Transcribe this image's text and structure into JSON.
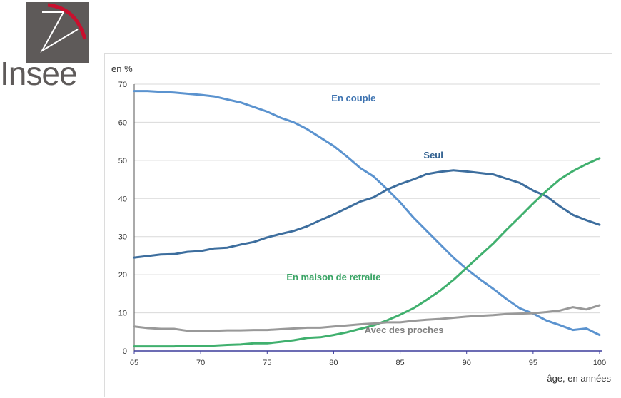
{
  "logo": {
    "text": "Insee"
  },
  "chart_data": {
    "type": "line",
    "ylabel": "en %",
    "xlabel": "âge, en années",
    "xlim": [
      65,
      100
    ],
    "ylim": [
      0,
      70
    ],
    "x_ticks": [
      65,
      70,
      75,
      80,
      85,
      90,
      95,
      100
    ],
    "y_ticks": [
      0,
      10,
      20,
      30,
      40,
      50,
      60,
      70
    ],
    "grid": "horizontal",
    "x": [
      65,
      66,
      67,
      68,
      69,
      70,
      71,
      72,
      73,
      74,
      75,
      76,
      77,
      78,
      79,
      80,
      81,
      82,
      83,
      84,
      85,
      86,
      87,
      88,
      89,
      90,
      91,
      92,
      93,
      94,
      95,
      96,
      97,
      98,
      99,
      100
    ],
    "series": [
      {
        "name": "En couple",
        "color": "#5b93cf",
        "values": [
          68.2,
          68.2,
          68.0,
          67.8,
          67.5,
          67.2,
          66.8,
          66.0,
          65.2,
          64.0,
          62.8,
          61.2,
          60.0,
          58.2,
          56.0,
          53.8,
          51.0,
          48.0,
          45.8,
          42.5,
          39.0,
          35.0,
          31.5,
          28.0,
          24.5,
          21.5,
          18.8,
          16.3,
          13.6,
          11.2,
          9.8,
          8.0,
          6.8,
          5.5,
          5.9,
          4.2
        ]
      },
      {
        "name": "Seul",
        "color": "#3d6e9e",
        "values": [
          24.5,
          24.9,
          25.3,
          25.4,
          26.0,
          26.2,
          26.9,
          27.1,
          27.9,
          28.6,
          29.8,
          30.7,
          31.5,
          32.7,
          34.3,
          35.8,
          37.5,
          39.2,
          40.3,
          42.3,
          43.8,
          45.0,
          46.4,
          47.0,
          47.4,
          47.1,
          46.7,
          46.3,
          45.2,
          44.1,
          42.1,
          40.6,
          38.0,
          35.7,
          34.3,
          33.1
        ]
      },
      {
        "name": "En maison de retraite",
        "color": "#40b06e",
        "values": [
          1.2,
          1.2,
          1.2,
          1.2,
          1.4,
          1.4,
          1.4,
          1.6,
          1.7,
          2.0,
          2.0,
          2.4,
          2.8,
          3.4,
          3.6,
          4.2,
          4.9,
          5.8,
          6.7,
          8.0,
          9.5,
          11.2,
          13.4,
          15.8,
          18.6,
          21.8,
          25.0,
          28.2,
          31.8,
          35.2,
          38.7,
          42.0,
          45.0,
          47.2,
          49.0,
          50.6
        ]
      },
      {
        "name": "Avec des proches",
        "color": "#999999",
        "values": [
          6.4,
          6.0,
          5.8,
          5.8,
          5.3,
          5.3,
          5.3,
          5.4,
          5.4,
          5.5,
          5.5,
          5.7,
          5.9,
          6.1,
          6.1,
          6.4,
          6.7,
          7.0,
          7.2,
          7.5,
          7.5,
          7.9,
          8.2,
          8.4,
          8.7,
          9.0,
          9.2,
          9.4,
          9.7,
          9.8,
          9.9,
          10.2,
          10.6,
          11.5,
          10.9,
          12.0
        ]
      }
    ],
    "annotations": [
      {
        "text": "En couple",
        "series": "En couple",
        "at_x": 81.5,
        "at_y": 65.5,
        "color": "#3f74b1"
      },
      {
        "text": "Seul",
        "series": "Seul",
        "at_x": 87.5,
        "at_y": 50.5,
        "color": "#2f5f8f"
      },
      {
        "text": "En maison de retraite",
        "series": "En maison de retraite",
        "at_x": 80,
        "at_y": 18.5,
        "color": "#3aa465"
      },
      {
        "text": "Avec des proches",
        "series": "Avec des proches",
        "at_x": 85.3,
        "at_y": 4.7,
        "color": "#808080"
      }
    ]
  }
}
